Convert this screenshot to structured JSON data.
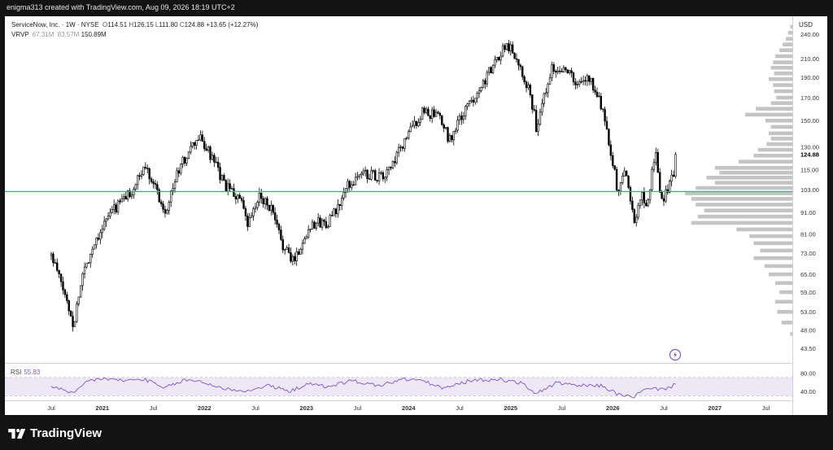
{
  "header": {
    "attribution": "enigma313 created with TradingView.com, Aug 09, 2026 18:19 UTC+2"
  },
  "legend": {
    "title": "ServiceNow, Inc. · 1W · NYSE",
    "o_label": "O",
    "o": "114.51",
    "h_label": "H",
    "h": "126.15",
    "l_label": "L",
    "l": "111.80",
    "c_label": "C",
    "c": "124.88",
    "change": "+13.65 (+12.27%)",
    "vrvp_label": "VRVP",
    "vrvp_v1": "67.31M",
    "vrvp_v2": "83.57M",
    "vrvp_v3": "150.89M"
  },
  "rsi": {
    "label": "RSI",
    "value": "55.83"
  },
  "currency": "USD",
  "footer": {
    "brand": "TradingView"
  },
  "colors": {
    "candle": "#000000",
    "hline": "#00bcd4",
    "rsi_line": "#7e57c2",
    "rsi_band": "#ede7f6",
    "profile": "#c4c4c4"
  },
  "chart_data": {
    "type": "candlestick",
    "timeframe": "1W",
    "y_scale": "log",
    "ylim": [
      40.5,
      260
    ],
    "price_ticks": [
      "240.00",
      "210.00",
      "190.00",
      "170.00",
      "150.00",
      "130.00",
      "115.00",
      "103.00",
      "91.00",
      "81.00",
      "73.00",
      "65.00",
      "59.00",
      "53.00",
      "48.00",
      "43.50"
    ],
    "last_price": "124.88",
    "x_ticks": [
      "Jul",
      "2021",
      "Jul",
      "2022",
      "Jul",
      "2023",
      "Jul",
      "2024",
      "Jul",
      "2025",
      "Jul",
      "2026",
      "Jul",
      "2027",
      "Jul"
    ],
    "horizontal_line": 102,
    "price_path": [
      {
        "t": 2020.5,
        "p": 72
      },
      {
        "t": 2020.72,
        "p": 49
      },
      {
        "t": 2020.8,
        "p": 64
      },
      {
        "t": 2020.95,
        "p": 80
      },
      {
        "t": 2021.1,
        "p": 92
      },
      {
        "t": 2021.3,
        "p": 103
      },
      {
        "t": 2021.42,
        "p": 117
      },
      {
        "t": 2021.5,
        "p": 108
      },
      {
        "t": 2021.58,
        "p": 95
      },
      {
        "t": 2021.62,
        "p": 92
      },
      {
        "t": 2021.75,
        "p": 115
      },
      {
        "t": 2021.9,
        "p": 132
      },
      {
        "t": 2021.95,
        "p": 137
      },
      {
        "t": 2022.05,
        "p": 125
      },
      {
        "t": 2022.2,
        "p": 105
      },
      {
        "t": 2022.35,
        "p": 98
      },
      {
        "t": 2022.42,
        "p": 84
      },
      {
        "t": 2022.55,
        "p": 100
      },
      {
        "t": 2022.65,
        "p": 93
      },
      {
        "t": 2022.75,
        "p": 78
      },
      {
        "t": 2022.85,
        "p": 70
      },
      {
        "t": 2022.93,
        "p": 74
      },
      {
        "t": 2023.05,
        "p": 86
      },
      {
        "t": 2023.2,
        "p": 86
      },
      {
        "t": 2023.3,
        "p": 92
      },
      {
        "t": 2023.4,
        "p": 105
      },
      {
        "t": 2023.55,
        "p": 113
      },
      {
        "t": 2023.75,
        "p": 110
      },
      {
        "t": 2023.85,
        "p": 118
      },
      {
        "t": 2024.0,
        "p": 140
      },
      {
        "t": 2024.15,
        "p": 158
      },
      {
        "t": 2024.3,
        "p": 152
      },
      {
        "t": 2024.4,
        "p": 135
      },
      {
        "t": 2024.5,
        "p": 150
      },
      {
        "t": 2024.7,
        "p": 180
      },
      {
        "t": 2024.85,
        "p": 205
      },
      {
        "t": 2024.95,
        "p": 228
      },
      {
        "t": 2025.03,
        "p": 218
      },
      {
        "t": 2025.12,
        "p": 195
      },
      {
        "t": 2025.2,
        "p": 170
      },
      {
        "t": 2025.26,
        "p": 140
      },
      {
        "t": 2025.32,
        "p": 170
      },
      {
        "t": 2025.4,
        "p": 200
      },
      {
        "t": 2025.55,
        "p": 200
      },
      {
        "t": 2025.65,
        "p": 180
      },
      {
        "t": 2025.75,
        "p": 190
      },
      {
        "t": 2025.85,
        "p": 175
      },
      {
        "t": 2025.95,
        "p": 140
      },
      {
        "t": 2026.05,
        "p": 100
      },
      {
        "t": 2026.12,
        "p": 115
      },
      {
        "t": 2026.22,
        "p": 85
      },
      {
        "t": 2026.28,
        "p": 100
      },
      {
        "t": 2026.35,
        "p": 95
      },
      {
        "t": 2026.42,
        "p": 130
      },
      {
        "t": 2026.47,
        "p": 95
      },
      {
        "t": 2026.53,
        "p": 103
      },
      {
        "t": 2026.6,
        "p": 112
      },
      {
        "t": 2026.62,
        "p": 124.88
      }
    ],
    "rsi": {
      "ylim": [
        20,
        100
      ],
      "ticks": [
        "80.00",
        "40.00"
      ],
      "band": [
        70,
        30
      ],
      "path": [
        {
          "t": 2020.5,
          "v": 52
        },
        {
          "t": 2020.72,
          "v": 33
        },
        {
          "t": 2020.85,
          "v": 62
        },
        {
          "t": 2021.0,
          "v": 68
        },
        {
          "t": 2021.2,
          "v": 63
        },
        {
          "t": 2021.42,
          "v": 66
        },
        {
          "t": 2021.6,
          "v": 46
        },
        {
          "t": 2021.8,
          "v": 64
        },
        {
          "t": 2021.95,
          "v": 62
        },
        {
          "t": 2022.2,
          "v": 45
        },
        {
          "t": 2022.45,
          "v": 40
        },
        {
          "t": 2022.6,
          "v": 53
        },
        {
          "t": 2022.85,
          "v": 40
        },
        {
          "t": 2023.0,
          "v": 56
        },
        {
          "t": 2023.2,
          "v": 50
        },
        {
          "t": 2023.45,
          "v": 63
        },
        {
          "t": 2023.7,
          "v": 52
        },
        {
          "t": 2023.95,
          "v": 66
        },
        {
          "t": 2024.1,
          "v": 65
        },
        {
          "t": 2024.35,
          "v": 46
        },
        {
          "t": 2024.6,
          "v": 63
        },
        {
          "t": 2024.9,
          "v": 66
        },
        {
          "t": 2025.1,
          "v": 58
        },
        {
          "t": 2025.25,
          "v": 35
        },
        {
          "t": 2025.45,
          "v": 58
        },
        {
          "t": 2025.65,
          "v": 52
        },
        {
          "t": 2025.9,
          "v": 52
        },
        {
          "t": 2026.05,
          "v": 33
        },
        {
          "t": 2026.2,
          "v": 27
        },
        {
          "t": 2026.32,
          "v": 44
        },
        {
          "t": 2026.45,
          "v": 45
        },
        {
          "t": 2026.55,
          "v": 47
        },
        {
          "t": 2026.62,
          "v": 55.83
        }
      ]
    },
    "volume_profile": [
      {
        "p": 250,
        "v": 0.02
      },
      {
        "p": 242,
        "v": 0.04
      },
      {
        "p": 234,
        "v": 0.06
      },
      {
        "p": 227,
        "v": 0.09
      },
      {
        "p": 220,
        "v": 0.12
      },
      {
        "p": 213,
        "v": 0.16
      },
      {
        "p": 206,
        "v": 0.18
      },
      {
        "p": 200,
        "v": 0.2
      },
      {
        "p": 194,
        "v": 0.17
      },
      {
        "p": 188,
        "v": 0.22
      },
      {
        "p": 182,
        "v": 0.18
      },
      {
        "p": 176,
        "v": 0.17
      },
      {
        "p": 170,
        "v": 0.15
      },
      {
        "p": 165,
        "v": 0.2
      },
      {
        "p": 160,
        "v": 0.34
      },
      {
        "p": 155,
        "v": 0.44
      },
      {
        "p": 150,
        "v": 0.25
      },
      {
        "p": 145,
        "v": 0.2
      },
      {
        "p": 140,
        "v": 0.22
      },
      {
        "p": 136,
        "v": 0.2
      },
      {
        "p": 132,
        "v": 0.24
      },
      {
        "p": 128,
        "v": 0.32
      },
      {
        "p": 124,
        "v": 0.36
      },
      {
        "p": 120,
        "v": 0.5
      },
      {
        "p": 116,
        "v": 0.72
      },
      {
        "p": 113,
        "v": 0.68
      },
      {
        "p": 110,
        "v": 0.8
      },
      {
        "p": 107,
        "v": 0.72
      },
      {
        "p": 104,
        "v": 0.9
      },
      {
        "p": 101,
        "v": 1.0
      },
      {
        "p": 98,
        "v": 0.94
      },
      {
        "p": 95,
        "v": 0.9
      },
      {
        "p": 92,
        "v": 0.82
      },
      {
        "p": 89,
        "v": 0.88
      },
      {
        "p": 86,
        "v": 0.94
      },
      {
        "p": 83,
        "v": 0.52
      },
      {
        "p": 80,
        "v": 0.4
      },
      {
        "p": 77,
        "v": 0.36
      },
      {
        "p": 74,
        "v": 0.3
      },
      {
        "p": 71,
        "v": 0.36
      },
      {
        "p": 68,
        "v": 0.26
      },
      {
        "p": 65,
        "v": 0.22
      },
      {
        "p": 62,
        "v": 0.16
      },
      {
        "p": 59,
        "v": 0.12
      },
      {
        "p": 56,
        "v": 0.16
      },
      {
        "p": 53,
        "v": 0.14
      },
      {
        "p": 50,
        "v": 0.1
      },
      {
        "p": 47,
        "v": 0.02
      }
    ]
  }
}
